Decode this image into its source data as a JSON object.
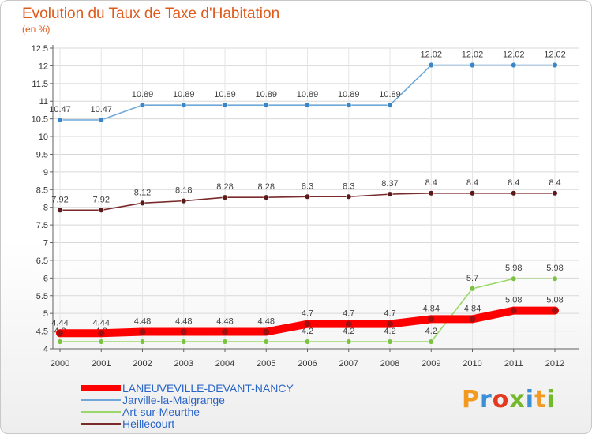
{
  "header": {
    "title": "Evolution du Taux de Taxe d'Habitation",
    "subtitle": "(en %)"
  },
  "logo": {
    "text": "Proxiti",
    "colors": [
      "#f29a1f",
      "#3a8fd6",
      "#e23a1f",
      "#75b82b",
      "#3a8fd6",
      "#f29a1f",
      "#75b82b"
    ]
  },
  "chart_data": {
    "type": "line",
    "title": "Evolution du Taux de Taxe d'Habitation",
    "subtitle": "(en %)",
    "xlabel": "",
    "ylabel": "",
    "x": [
      "2000",
      "2001",
      "2002",
      "2003",
      "2004",
      "2005",
      "2006",
      "2007",
      "2008",
      "2009",
      "2010",
      "2011",
      "2012"
    ],
    "ylim": [
      4,
      12.5
    ],
    "yticks": [
      "4",
      "4.5",
      "5",
      "5.5",
      "6",
      "6.5",
      "7",
      "7.5",
      "8",
      "8.5",
      "9",
      "9.5",
      "10",
      "10.5",
      "11",
      "11.5",
      "12",
      "12.5"
    ],
    "legend_position": "bottom-left",
    "series": [
      {
        "name": "LANEUVEVILLE-DEVANT-NANCY",
        "color": "#ff0000",
        "marker_color": "#a01010",
        "values": [
          4.44,
          4.44,
          4.48,
          4.48,
          4.48,
          4.48,
          4.7,
          4.7,
          4.7,
          4.84,
          4.84,
          5.08,
          5.08
        ],
        "labels": [
          "4.44",
          "4.44",
          "4.48",
          "4.48",
          "4.48",
          "4.48",
          "4.7",
          "4.7",
          "4.7",
          "4.84",
          "4.84",
          "5.08",
          "5.08"
        ]
      },
      {
        "name": "Jarville-la-Malgrange",
        "color": "#6fa8d8",
        "marker_color": "#3a86c8",
        "values": [
          10.47,
          10.47,
          10.89,
          10.89,
          10.89,
          10.89,
          10.89,
          10.89,
          10.89,
          12.02,
          12.02,
          12.02,
          12.02
        ],
        "labels": [
          "10.47",
          "10.47",
          "10.89",
          "10.89",
          "10.89",
          "10.89",
          "10.89",
          "10.89",
          "10.89",
          "12.02",
          "12.02",
          "12.02",
          "12.02"
        ]
      },
      {
        "name": "Art-sur-Meurthe",
        "color": "#9ad86a",
        "marker_color": "#7cc242",
        "values": [
          4.2,
          4.2,
          4.2,
          4.2,
          4.2,
          4.2,
          4.2,
          4.2,
          4.2,
          4.2,
          5.7,
          5.98,
          5.98
        ],
        "labels": [
          "4.2",
          "4.2",
          "4.2",
          "4.2",
          "4.2",
          "4.2",
          "4.2",
          "4.2",
          "4.2",
          "4.2",
          "5.7",
          "5.98",
          "5.98"
        ]
      },
      {
        "name": "Heillecourt",
        "color": "#7a2a2a",
        "marker_color": "#5a1a1a",
        "values": [
          7.92,
          7.92,
          8.12,
          8.18,
          8.28,
          8.28,
          8.3,
          8.3,
          8.37,
          8.4,
          8.4,
          8.4,
          8.4
        ],
        "labels": [
          "7.92",
          "7.92",
          "8.12",
          "8.18",
          "8.28",
          "8.28",
          "8.3",
          "8.3",
          "8.37",
          "8.4",
          "8.4",
          "8.4",
          "8.4"
        ]
      }
    ]
  }
}
